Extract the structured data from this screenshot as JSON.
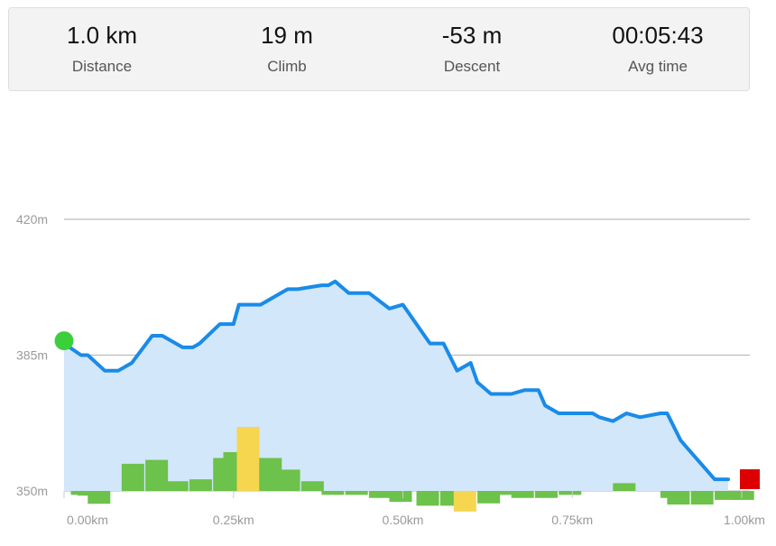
{
  "stats": {
    "distance": {
      "value": "1.0 km",
      "label": "Distance"
    },
    "climb": {
      "value": "19 m",
      "label": "Climb"
    },
    "descent": {
      "value": "-53 m",
      "label": "Descent"
    },
    "avg_time": {
      "value": "00:05:43",
      "label": "Avg time"
    }
  },
  "colors": {
    "line": "#1a8be8",
    "fill": "#d2e7fa",
    "bar_green": "#6cc24a",
    "bar_yellow": "#f5d64e",
    "start_marker": "#3ccf3c",
    "end_marker": "#dd0000",
    "grid": "#bbbbbb"
  },
  "chart_data": {
    "type": "area",
    "title": "",
    "xlabel": "",
    "ylabel": "",
    "xlim": [
      0,
      1.0
    ],
    "ylim": [
      350,
      420
    ],
    "y_ticks": [
      {
        "value": 350,
        "label": "350m"
      },
      {
        "value": 385,
        "label": "385m"
      },
      {
        "value": 420,
        "label": "420m"
      }
    ],
    "x_ticks": [
      {
        "value": 0,
        "label": "0.00km"
      },
      {
        "value": 0.25,
        "label": "0.25km"
      },
      {
        "value": 0.5,
        "label": "0.50km"
      },
      {
        "value": 0.75,
        "label": "0.75km"
      },
      {
        "value": 1.0,
        "label": "1.00km"
      }
    ],
    "grid": true,
    "elevation": {
      "x": [
        0,
        0.025,
        0.035,
        0.06,
        0.08,
        0.1,
        0.13,
        0.145,
        0.175,
        0.19,
        0.2,
        0.23,
        0.25,
        0.258,
        0.29,
        0.33,
        0.345,
        0.38,
        0.39,
        0.4,
        0.42,
        0.45,
        0.48,
        0.5,
        0.52,
        0.54,
        0.56,
        0.58,
        0.6,
        0.61,
        0.63,
        0.66,
        0.68,
        0.7,
        0.71,
        0.73,
        0.75,
        0.78,
        0.79,
        0.81,
        0.83,
        0.85,
        0.88,
        0.89,
        0.91,
        0.96,
        0.98
      ],
      "y": [
        388,
        385,
        385,
        381,
        381,
        383,
        390,
        390,
        387,
        387,
        388,
        393,
        393,
        398,
        398,
        402,
        402,
        403,
        403,
        404,
        401,
        401,
        397,
        398,
        393,
        388,
        388,
        381,
        383,
        378,
        375,
        375,
        376,
        376,
        372,
        370,
        370,
        370,
        369,
        368,
        370,
        369,
        370,
        370,
        363,
        353,
        353
      ]
    },
    "grade_bars": {
      "bin_width": 0.0333,
      "x_start": [
        0.01,
        0.02,
        0.035,
        0.085,
        0.12,
        0.15,
        0.185,
        0.22,
        0.235,
        0.255,
        0.288,
        0.315,
        0.35,
        0.38,
        0.415,
        0.45,
        0.48,
        0.52,
        0.555,
        0.575,
        0.61,
        0.64,
        0.66,
        0.695,
        0.73,
        0.76,
        0.795,
        0.81,
        0.845,
        0.88,
        0.89,
        0.925,
        0.96,
        0.985
      ],
      "values": [
        -1,
        -1.2,
        -3.3,
        7,
        8,
        2.5,
        3,
        8.5,
        10,
        16.5,
        8.5,
        5.5,
        2.5,
        -1,
        -1,
        -1.8,
        -2.8,
        -3.8,
        -3.8,
        -5.3,
        -3.2,
        -1,
        -1.8,
        -1.8,
        -1,
        0,
        0,
        2,
        0,
        -1.8,
        -3.5,
        -3.5,
        -2.3,
        -2.3
      ],
      "highlighted": [
        false,
        false,
        false,
        false,
        false,
        false,
        false,
        false,
        false,
        true,
        false,
        false,
        false,
        false,
        false,
        false,
        false,
        false,
        false,
        true,
        false,
        false,
        false,
        false,
        false,
        false,
        false,
        false,
        false,
        false,
        false,
        false,
        false,
        false
      ]
    }
  }
}
